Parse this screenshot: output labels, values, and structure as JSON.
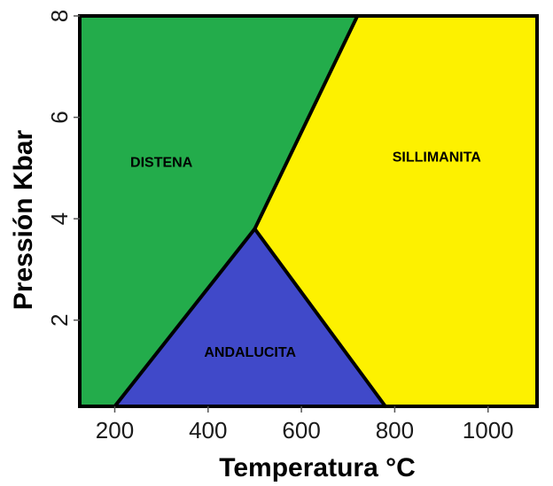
{
  "chart_data": {
    "type": "area",
    "xlabel": "Temperatura °C",
    "ylabel": "Pressión Kbar",
    "xlim": [
      125,
      1105
    ],
    "ylim": [
      0.3,
      8
    ],
    "x_ticks": [
      {
        "value": 200,
        "label": "200"
      },
      {
        "value": 400,
        "label": "400"
      },
      {
        "value": 600,
        "label": "600"
      },
      {
        "value": 800,
        "label": "800"
      },
      {
        "value": 1000,
        "label": "1000"
      }
    ],
    "y_ticks": [
      {
        "value": 2,
        "label": "2"
      },
      {
        "value": 4,
        "label": "4"
      },
      {
        "value": 6,
        "label": "6"
      },
      {
        "value": 8,
        "label": "8"
      }
    ],
    "triple_point": {
      "x": 500,
      "y": 3.8
    },
    "boundaries": [
      {
        "from": [
          200,
          0.3
        ],
        "to": [
          500,
          3.8
        ]
      },
      {
        "from": [
          500,
          3.8
        ],
        "to": [
          780,
          0.3
        ]
      },
      {
        "from": [
          500,
          3.8
        ],
        "to": [
          720,
          8
        ]
      }
    ],
    "regions": [
      {
        "name": "DISTENA",
        "color": "#23ac4b",
        "label_at": [
          300,
          5.1
        ],
        "polygon": [
          [
            125,
            0.3
          ],
          [
            200,
            0.3
          ],
          [
            500,
            3.8
          ],
          [
            720,
            8
          ],
          [
            125,
            8
          ]
        ]
      },
      {
        "name": "ANDALUCITA",
        "color": "#4049c9",
        "label_at": [
          490,
          1.35
        ],
        "polygon": [
          [
            200,
            0.3
          ],
          [
            500,
            3.8
          ],
          [
            780,
            0.3
          ]
        ]
      },
      {
        "name": "SILLIMANITA",
        "color": "#fdf100",
        "label_at": [
          890,
          5.2
        ],
        "polygon": [
          [
            780,
            0.3
          ],
          [
            500,
            3.8
          ],
          [
            720,
            8
          ],
          [
            1105,
            8
          ],
          [
            1105,
            0.3
          ]
        ]
      }
    ],
    "grid": false
  }
}
